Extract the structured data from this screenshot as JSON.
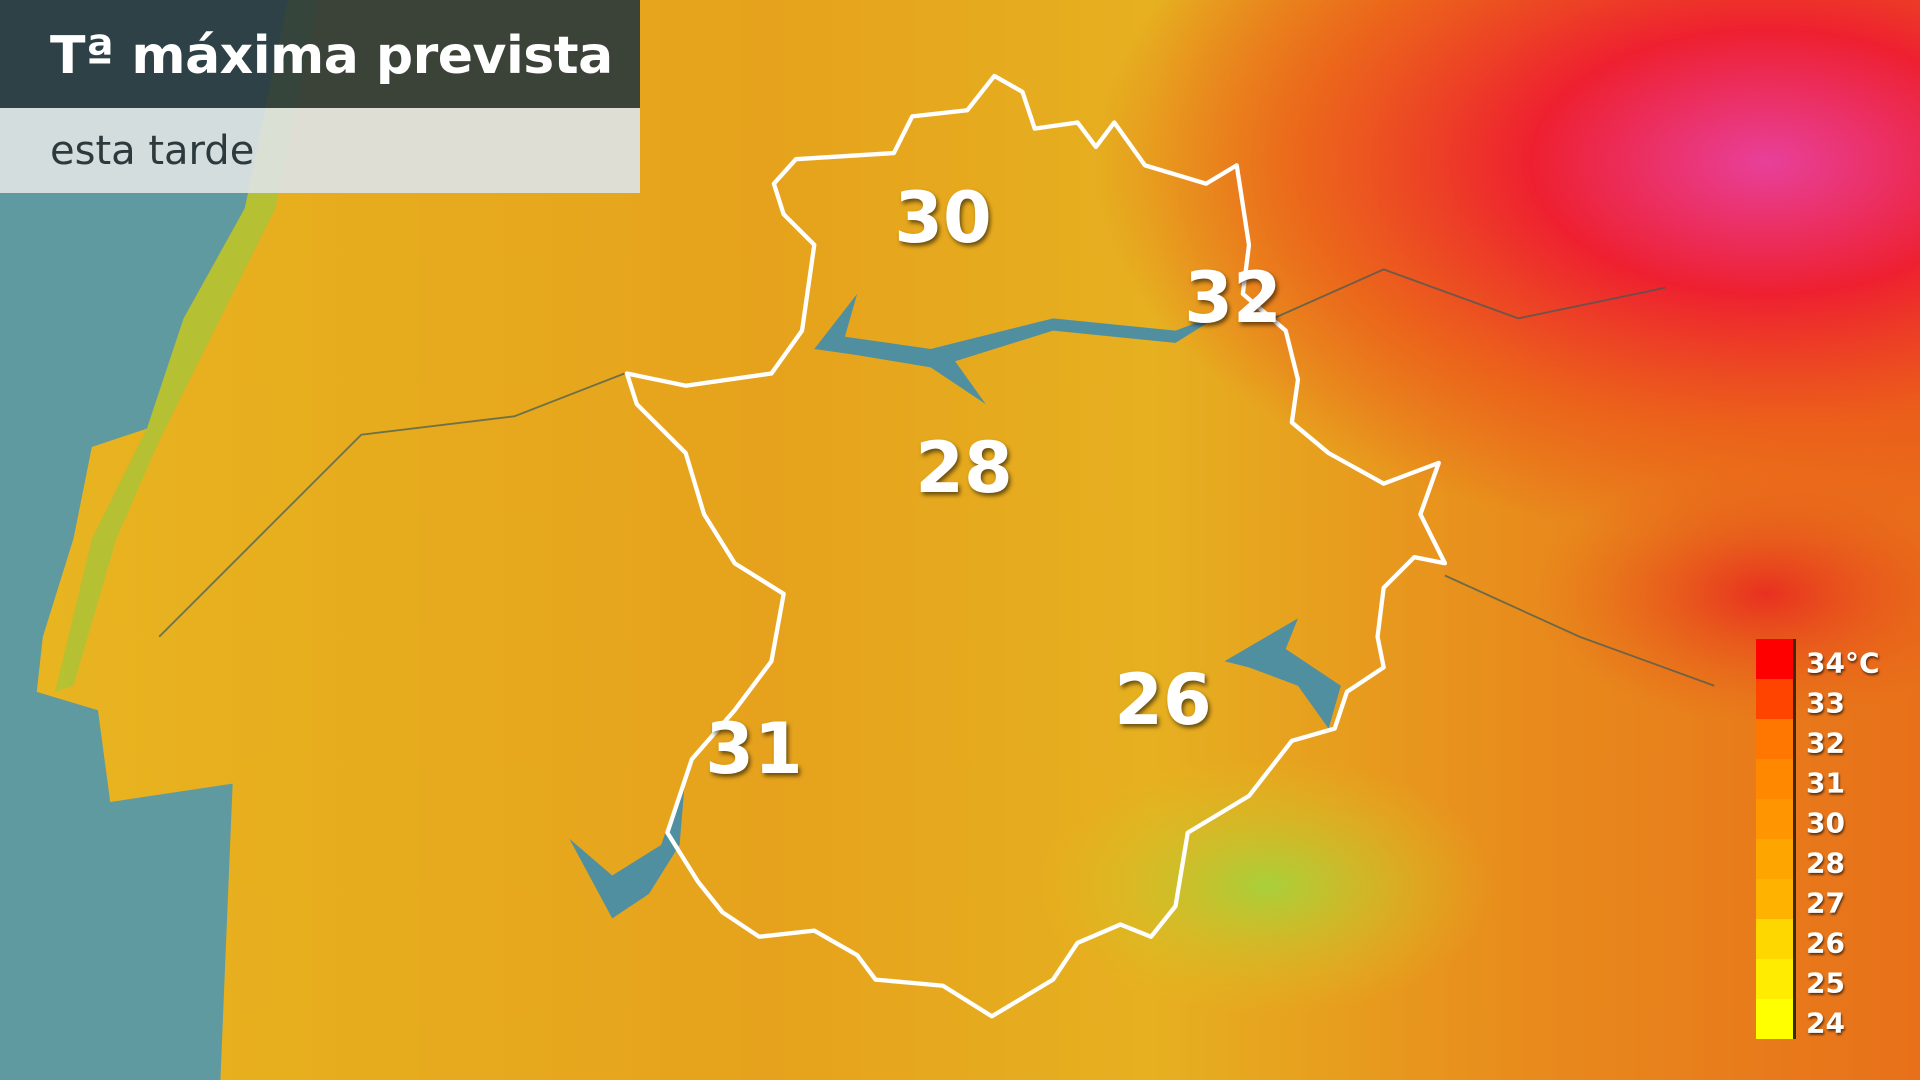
{
  "header": {
    "title": "Tª máxima prevista",
    "subtitle": "esta tarde"
  },
  "temperatures": [
    {
      "zone": "north",
      "value": "30"
    },
    {
      "zone": "northeast",
      "value": "32"
    },
    {
      "zone": "center",
      "value": "28"
    },
    {
      "zone": "southeast",
      "value": "26"
    },
    {
      "zone": "southwest",
      "value": "31"
    }
  ],
  "legend": {
    "unit": "°C",
    "items": [
      {
        "label": "34°C",
        "color": "#ff0000"
      },
      {
        "label": "33",
        "color": "#ff4400"
      },
      {
        "label": "32",
        "color": "#ff7700"
      },
      {
        "label": "31",
        "color": "#ff8800"
      },
      {
        "label": "30",
        "color": "#ff9500"
      },
      {
        "label": "28",
        "color": "#ffa500"
      },
      {
        "label": "27",
        "color": "#ffb300"
      },
      {
        "label": "26",
        "color": "#ffd700"
      },
      {
        "label": "25",
        "color": "#ffec00"
      },
      {
        "label": "24",
        "color": "#ffff00"
      }
    ]
  },
  "colors": {
    "sea": "#5e9aa0",
    "region_border": "#ffffff",
    "reservoir": "#4f8fa0"
  }
}
